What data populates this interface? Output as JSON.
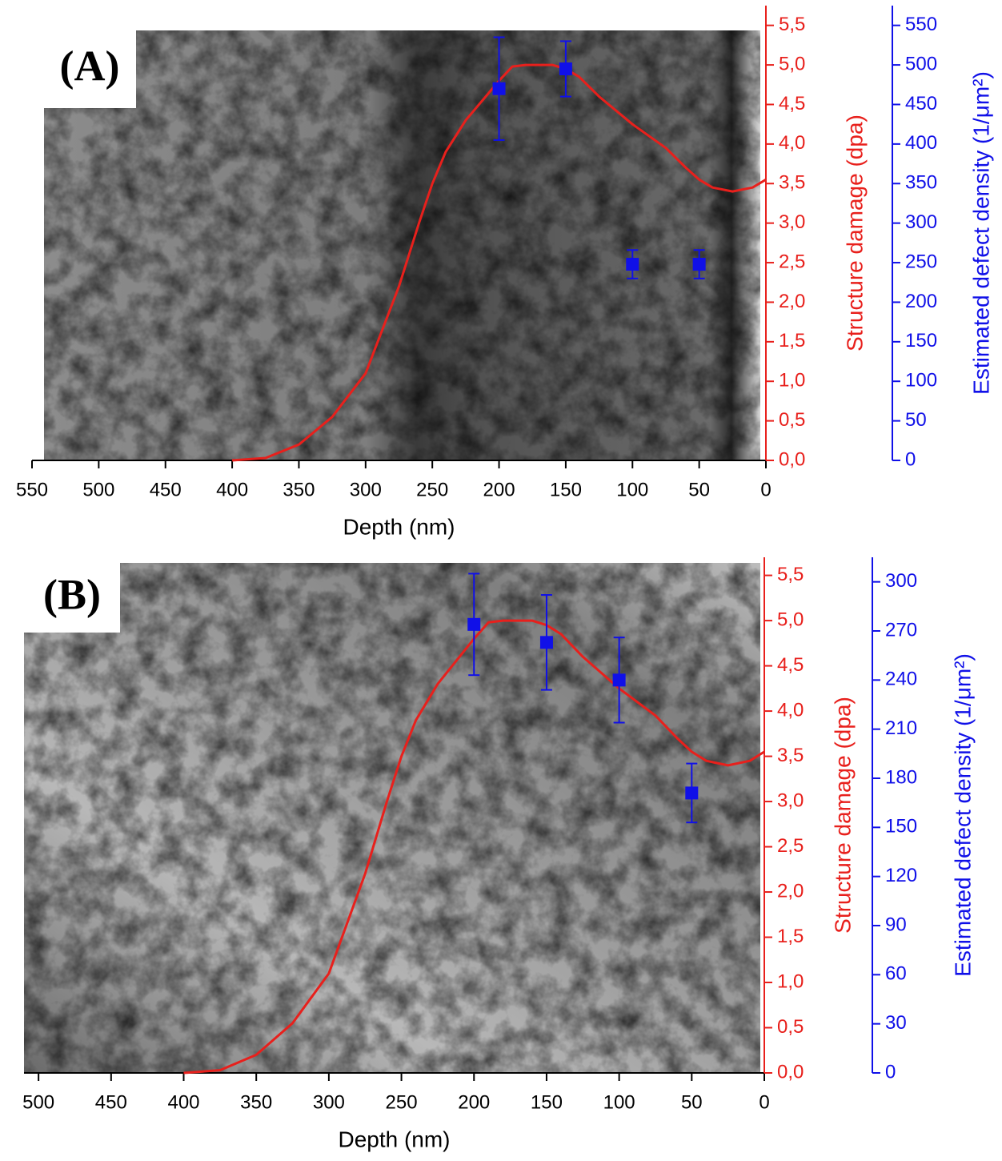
{
  "chart_data": [
    {
      "type": "line",
      "panel_label": "(A)",
      "xlabel": "Depth (nm)",
      "ylabel": "Structure damage (dpa)",
      "y2label": "Estimated defect density (1/μm²)",
      "xlim": [
        550,
        0
      ],
      "xticks": [
        550,
        500,
        450,
        400,
        350,
        300,
        250,
        200,
        150,
        100,
        50,
        0
      ],
      "ylim": [
        0,
        5.75
      ],
      "yticks": [
        {
          "value": 0,
          "label": "0,0"
        },
        {
          "value": 0.5,
          "label": "0,5"
        },
        {
          "value": 1,
          "label": "1,0"
        },
        {
          "value": 1.5,
          "label": "1,5"
        },
        {
          "value": 2,
          "label": "2,0"
        },
        {
          "value": 2.5,
          "label": "2,5"
        },
        {
          "value": 3,
          "label": "3,0"
        },
        {
          "value": 3.5,
          "label": "3,5"
        },
        {
          "value": 4,
          "label": "4,0"
        },
        {
          "value": 4.5,
          "label": "4,5"
        },
        {
          "value": 5,
          "label": "5,0"
        },
        {
          "value": 5.5,
          "label": "5,5"
        }
      ],
      "y2lim": [
        0,
        575
      ],
      "y2ticks": [
        0,
        50,
        100,
        150,
        200,
        250,
        300,
        350,
        400,
        450,
        500,
        550
      ],
      "series": [
        {
          "type": "line",
          "color": "#e8201c",
          "x": [
            400,
            375,
            350,
            325,
            300,
            275,
            260,
            250,
            240,
            225,
            210,
            200,
            190,
            180,
            160,
            150,
            140,
            125,
            100,
            75,
            60,
            50,
            40,
            25,
            10,
            0
          ],
          "values": [
            0,
            0.03,
            0.2,
            0.55,
            1.1,
            2.2,
            3.0,
            3.5,
            3.9,
            4.3,
            4.6,
            4.8,
            4.98,
            5.0,
            5.0,
            4.95,
            4.85,
            4.6,
            4.25,
            3.95,
            3.7,
            3.55,
            3.45,
            3.4,
            3.45,
            3.55
          ]
        },
        {
          "type": "scatter",
          "axis": "y2",
          "color": "#1010e8",
          "x": [
            200,
            150,
            100,
            50
          ],
          "values": [
            470,
            495,
            248,
            248
          ],
          "errors": [
            65,
            35,
            18,
            18
          ]
        }
      ]
    },
    {
      "type": "line",
      "panel_label": "(B)",
      "xlabel": "Depth (nm)",
      "ylabel": "Structure damage (dpa)",
      "y2label": "Estimated defect density (1/μm²)",
      "xlim": [
        510,
        0
      ],
      "xticks": [
        500,
        450,
        400,
        350,
        300,
        250,
        200,
        150,
        100,
        50,
        0
      ],
      "ylim": [
        0,
        5.7
      ],
      "yticks": [
        {
          "value": 0,
          "label": "0,0"
        },
        {
          "value": 0.5,
          "label": "0,5"
        },
        {
          "value": 1,
          "label": "1,0"
        },
        {
          "value": 1.5,
          "label": "1,5"
        },
        {
          "value": 2,
          "label": "2,0"
        },
        {
          "value": 2.5,
          "label": "2,5"
        },
        {
          "value": 3,
          "label": "3,0"
        },
        {
          "value": 3.5,
          "label": "3,5"
        },
        {
          "value": 4,
          "label": "4,0"
        },
        {
          "value": 4.5,
          "label": "4,5"
        },
        {
          "value": 5,
          "label": "5,0"
        },
        {
          "value": 5.5,
          "label": "5,5"
        }
      ],
      "y2lim": [
        0,
        315
      ],
      "y2ticks": [
        0,
        30,
        60,
        90,
        120,
        150,
        180,
        210,
        240,
        270,
        300
      ],
      "series": [
        {
          "type": "line",
          "color": "#e8201c",
          "x": [
            400,
            375,
            350,
            325,
            300,
            275,
            260,
            250,
            240,
            225,
            210,
            200,
            190,
            180,
            160,
            150,
            140,
            125,
            100,
            75,
            60,
            50,
            40,
            25,
            10,
            0
          ],
          "values": [
            0,
            0.03,
            0.2,
            0.55,
            1.1,
            2.2,
            3.0,
            3.5,
            3.9,
            4.3,
            4.6,
            4.8,
            4.98,
            5.0,
            5.0,
            4.95,
            4.85,
            4.6,
            4.25,
            3.95,
            3.7,
            3.55,
            3.45,
            3.4,
            3.45,
            3.55
          ]
        },
        {
          "type": "scatter",
          "axis": "y2",
          "color": "#1010e8",
          "x": [
            200,
            150,
            100,
            50
          ],
          "values": [
            274,
            263,
            240,
            171
          ],
          "errors": [
            31,
            29,
            26,
            18
          ]
        }
      ]
    }
  ]
}
